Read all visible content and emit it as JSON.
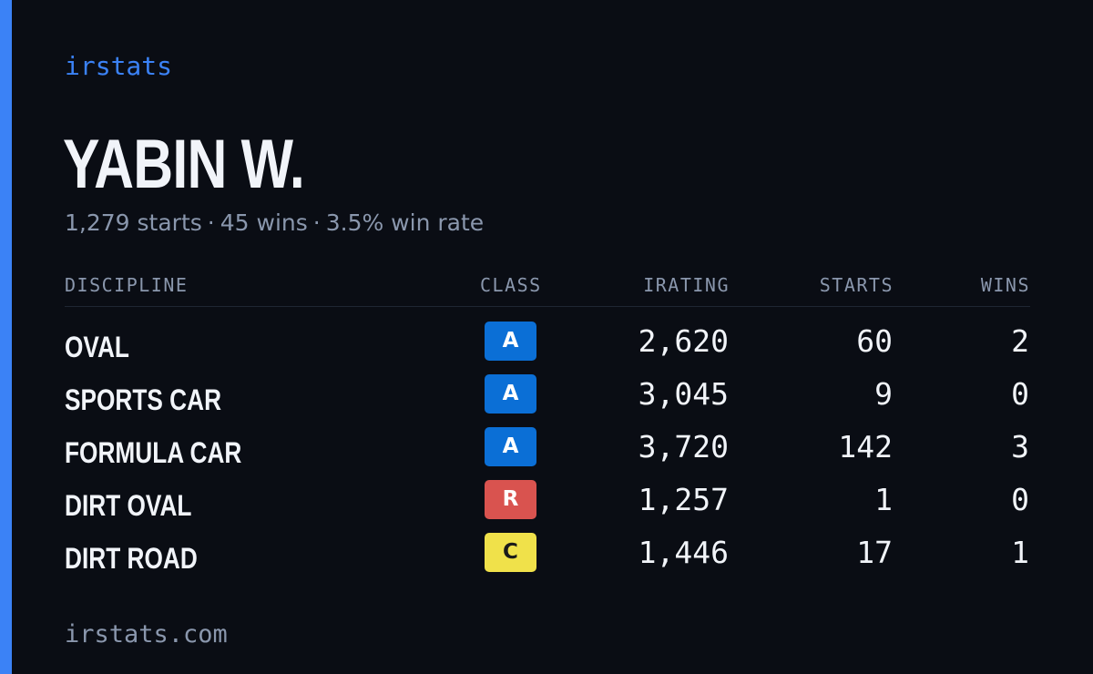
{
  "brand": "irstats",
  "driver": {
    "name": "YABIN W.",
    "starts_text": "1,279 starts",
    "wins_text": "45 wins",
    "win_rate_text": "3.5% win rate",
    "separator": "·"
  },
  "table": {
    "headers": {
      "discipline": "DISCIPLINE",
      "class": "CLASS",
      "irating": "IRATING",
      "starts": "STARTS",
      "wins": "WINS"
    },
    "rows": [
      {
        "discipline": "OVAL",
        "class": "A",
        "irating": "2,620",
        "starts": "60",
        "wins": "2"
      },
      {
        "discipline": "SPORTS CAR",
        "class": "A",
        "irating": "3,045",
        "starts": "9",
        "wins": "0"
      },
      {
        "discipline": "FORMULA CAR",
        "class": "A",
        "irating": "3,720",
        "starts": "142",
        "wins": "3"
      },
      {
        "discipline": "DIRT OVAL",
        "class": "R",
        "irating": "1,257",
        "starts": "1",
        "wins": "0"
      },
      {
        "discipline": "DIRT ROAD",
        "class": "C",
        "irating": "1,446",
        "starts": "17",
        "wins": "1"
      }
    ]
  },
  "class_colors": {
    "A": {
      "bg": "#0b6fd6",
      "fg": "#ffffff"
    },
    "R": {
      "bg": "#d9534f",
      "fg": "#ffffff"
    },
    "C": {
      "bg": "#f0e14a",
      "fg": "#1a1a1a"
    }
  },
  "colors": {
    "background": "#0a0d14",
    "accent": "#3b82f6",
    "text_primary": "#f1f4f9",
    "text_muted": "#8a97ad"
  },
  "footer": "irstats.com"
}
